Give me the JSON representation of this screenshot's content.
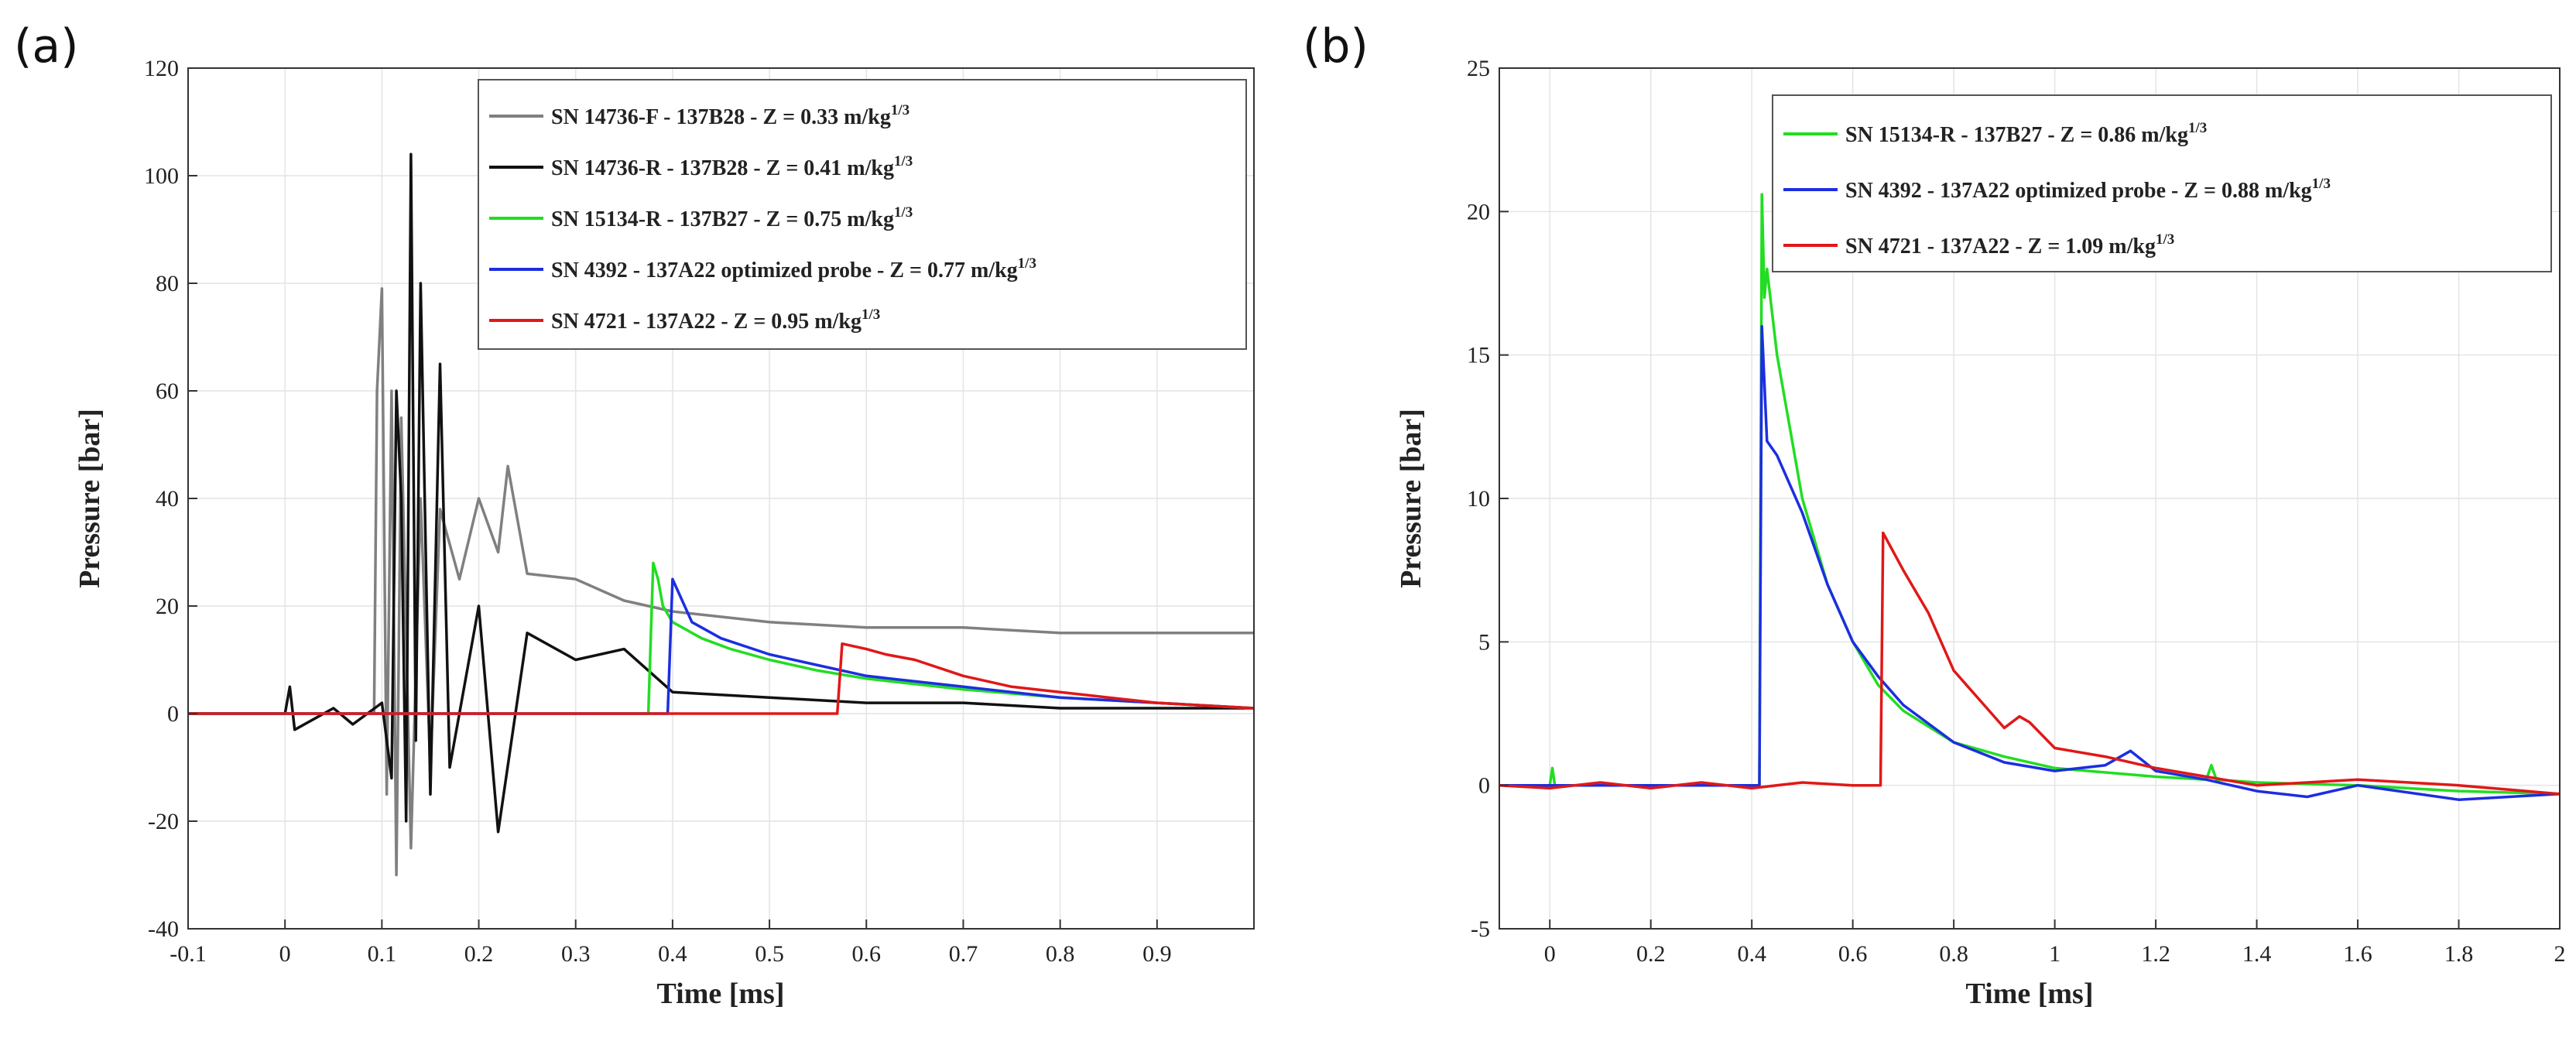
{
  "chart_data": [
    {
      "panel": "(a)",
      "type": "line",
      "xlabel": "Time [ms]",
      "ylabel": "Pressure [bar]",
      "xlim": [
        -0.1,
        1.0
      ],
      "ylim": [
        -40,
        120
      ],
      "xticks": [
        -0.1,
        0,
        0.1,
        0.2,
        0.3,
        0.4,
        0.5,
        0.6,
        0.7,
        0.8,
        0.9
      ],
      "xtick_labels": [
        "-0.1",
        "0",
        "0.1",
        "0.2",
        "0.3",
        "0.4",
        "0.5",
        "0.6",
        "0.7",
        "0.8",
        "0.9"
      ],
      "yticks": [
        -40,
        -20,
        0,
        20,
        40,
        60,
        80,
        100,
        120
      ],
      "ytick_labels": [
        "-40",
        "-20",
        "0",
        "20",
        "40",
        "60",
        "80",
        "100",
        "120"
      ],
      "grid": true,
      "legend_position": "top-right",
      "series": [
        {
          "name": "SN 14736-F - 137B28 - Z = 0.33 m/kg",
          "sup": "1/3",
          "color": "#808080",
          "x": [
            -0.1,
            0.0,
            0.02,
            0.05,
            0.06,
            0.08,
            0.092,
            0.095,
            0.1,
            0.105,
            0.11,
            0.115,
            0.12,
            0.13,
            0.14,
            0.15,
            0.16,
            0.18,
            0.2,
            0.22,
            0.23,
            0.25,
            0.3,
            0.35,
            0.4,
            0.5,
            0.6,
            0.7,
            0.8,
            0.9,
            1.0
          ],
          "y": [
            0,
            0,
            0,
            0,
            0,
            0,
            0,
            60,
            79,
            -15,
            60,
            -30,
            55,
            -25,
            40,
            -10,
            38,
            25,
            40,
            30,
            46,
            26,
            25,
            21,
            19,
            17,
            16,
            16,
            15,
            15,
            15
          ]
        },
        {
          "name": "SN 14736-R - 137B28 - Z = 0.41 m/kg",
          "sup": "1/3",
          "color": "#111111",
          "x": [
            -0.1,
            0.0,
            0.005,
            0.01,
            0.05,
            0.07,
            0.1,
            0.11,
            0.115,
            0.12,
            0.125,
            0.13,
            0.135,
            0.14,
            0.15,
            0.16,
            0.17,
            0.2,
            0.22,
            0.25,
            0.3,
            0.35,
            0.4,
            0.5,
            0.6,
            0.7,
            0.8,
            0.9,
            1.0
          ],
          "y": [
            0,
            0,
            5,
            -3,
            1,
            -2,
            2,
            -12,
            60,
            40,
            -20,
            104,
            -5,
            80,
            -15,
            65,
            -10,
            20,
            -22,
            15,
            10,
            12,
            4,
            3,
            2,
            2,
            1,
            1,
            1
          ]
        },
        {
          "name": "SN 15134-R - 137B27 - Z = 0.75 m/kg",
          "sup": "1/3",
          "color": "#22dd22",
          "x": [
            -0.1,
            0.37,
            0.375,
            0.38,
            0.385,
            0.39,
            0.4,
            0.43,
            0.46,
            0.5,
            0.55,
            0.6,
            0.7,
            0.8,
            0.9,
            1.0
          ],
          "y": [
            0,
            0,
            0,
            28,
            25,
            20,
            17,
            14,
            12,
            10,
            8,
            6.5,
            4.5,
            3,
            2,
            1
          ]
        },
        {
          "name": "SN 4392 - 137A22 optimized probe - Z = 0.77 m/kg",
          "sup": "1/3",
          "color": "#1c2ee0",
          "x": [
            -0.1,
            0.39,
            0.395,
            0.4,
            0.42,
            0.45,
            0.5,
            0.55,
            0.6,
            0.7,
            0.8,
            0.9,
            1.0
          ],
          "y": [
            0,
            0,
            0,
            25,
            17,
            14,
            11,
            9,
            7,
            5,
            3,
            2,
            1
          ]
        },
        {
          "name": "SN 4721 - 137A22 - Z = 0.95 m/kg",
          "sup": "1/3",
          "color": "#e01818",
          "x": [
            -0.1,
            0.565,
            0.57,
            0.575,
            0.6,
            0.62,
            0.65,
            0.7,
            0.75,
            0.8,
            0.85,
            0.9,
            0.95,
            1.0
          ],
          "y": [
            0,
            0,
            0,
            13,
            12,
            11,
            10,
            7,
            5,
            4,
            3,
            2,
            1.5,
            1
          ]
        }
      ]
    },
    {
      "panel": "(b)",
      "type": "line",
      "xlabel": "Time [ms]",
      "ylabel": "Pressure [bar]",
      "xlim": [
        -0.1,
        2.0
      ],
      "ylim": [
        -5,
        25
      ],
      "xticks": [
        0,
        0.2,
        0.4,
        0.6,
        0.8,
        1,
        1.2,
        1.4,
        1.6,
        1.8,
        2
      ],
      "xtick_labels": [
        "0",
        "0.2",
        "0.4",
        "0.6",
        "0.8",
        "1",
        "1.2",
        "1.4",
        "1.6",
        "1.8",
        "2"
      ],
      "yticks": [
        -5,
        0,
        5,
        10,
        15,
        20,
        25
      ],
      "ytick_labels": [
        "-5",
        "0",
        "5",
        "10",
        "15",
        "20",
        "25"
      ],
      "grid": true,
      "legend_position": "top-right",
      "series": [
        {
          "name": "SN 15134-R - 137B27 - Z = 0.86 m/kg",
          "sup": "1/3",
          "color": "#22dd22",
          "x": [
            -0.1,
            0.0,
            0.005,
            0.01,
            0.41,
            0.415,
            0.42,
            0.425,
            0.43,
            0.45,
            0.5,
            0.55,
            0.6,
            0.65,
            0.7,
            0.8,
            0.9,
            1.0,
            1.2,
            1.3,
            1.31,
            1.32,
            1.4,
            1.6,
            1.8,
            2.0
          ],
          "y": [
            0,
            0,
            0.6,
            0,
            0,
            0,
            20.6,
            17,
            18,
            15,
            10,
            7,
            5,
            3.5,
            2.6,
            1.5,
            1,
            0.6,
            0.3,
            0.2,
            0.7,
            0.2,
            0.1,
            0,
            -0.2,
            -0.3
          ]
        },
        {
          "name": "SN 4392 - 137A22 optimized probe - Z = 0.88 m/kg",
          "sup": "1/3",
          "color": "#1c2ee0",
          "x": [
            -0.1,
            0.41,
            0.415,
            0.42,
            0.43,
            0.45,
            0.5,
            0.55,
            0.6,
            0.65,
            0.7,
            0.8,
            0.9,
            1.0,
            1.1,
            1.15,
            1.2,
            1.3,
            1.4,
            1.5,
            1.6,
            1.8,
            2.0
          ],
          "y": [
            0,
            0,
            0,
            16,
            12,
            11.5,
            9.5,
            7,
            5,
            3.8,
            2.8,
            1.5,
            0.8,
            0.5,
            0.7,
            1.2,
            0.5,
            0.2,
            -0.2,
            -0.4,
            0,
            -0.5,
            -0.3
          ]
        },
        {
          "name": "SN 4721 - 137A22 - Z = 1.09 m/kg",
          "sup": "1/3",
          "color": "#e01818",
          "x": [
            -0.1,
            0.0,
            0.1,
            0.2,
            0.3,
            0.4,
            0.5,
            0.6,
            0.65,
            0.655,
            0.66,
            0.7,
            0.75,
            0.8,
            0.85,
            0.9,
            0.93,
            0.95,
            1.0,
            1.1,
            1.2,
            1.3,
            1.4,
            1.5,
            1.6,
            1.8,
            2.0
          ],
          "y": [
            0,
            -0.1,
            0.1,
            -0.1,
            0.1,
            -0.1,
            0.1,
            0,
            0,
            0,
            8.8,
            7.5,
            6,
            4,
            3,
            2,
            2.4,
            2.2,
            1.3,
            1,
            0.6,
            0.3,
            0,
            0.1,
            0.2,
            0,
            -0.3
          ]
        }
      ]
    }
  ]
}
